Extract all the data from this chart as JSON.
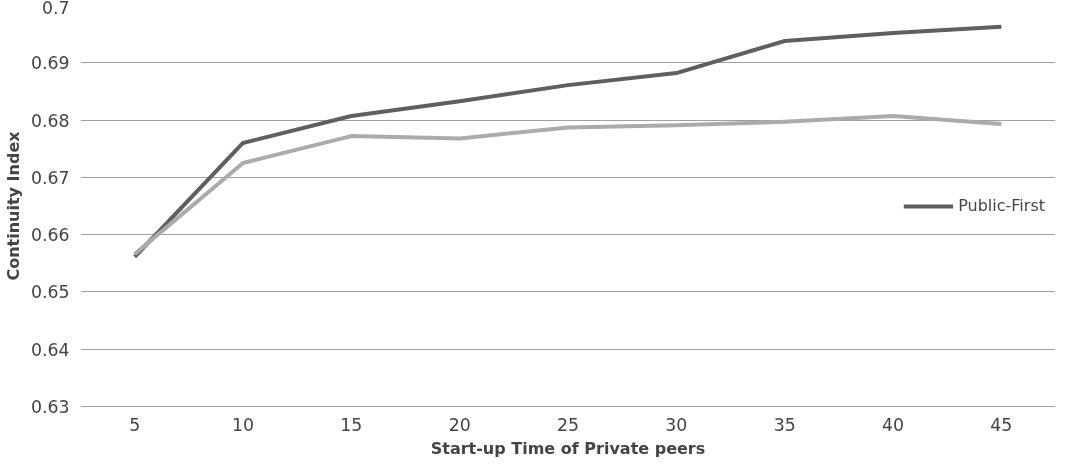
{
  "chart_data": {
    "type": "line",
    "xlabel": "Start-up Time of Private peers",
    "ylabel": "Continuity Index",
    "categories": [
      "5",
      "10",
      "15",
      "20",
      "25",
      "30",
      "35",
      "40",
      "45"
    ],
    "series": [
      {
        "name": "Public-First",
        "color": "#5f5f5f",
        "values": [
          0.6561,
          0.676,
          0.6807,
          0.6833,
          0.6861,
          0.6882,
          0.6938,
          0.6952,
          0.6963
        ]
      },
      {
        "color": "#ababab",
        "values": [
          0.6566,
          0.6725,
          0.6772,
          0.6768,
          0.6787,
          0.6791,
          0.6797,
          0.6807,
          0.6793
        ]
      }
    ],
    "ylim": [
      0.63,
      0.7
    ],
    "yticks": [
      0.63,
      0.64,
      0.65,
      0.66,
      0.67,
      0.68,
      0.69,
      0.7
    ],
    "grid": "y",
    "legend": "right",
    "marker": "none",
    "line_style": "solid"
  }
}
